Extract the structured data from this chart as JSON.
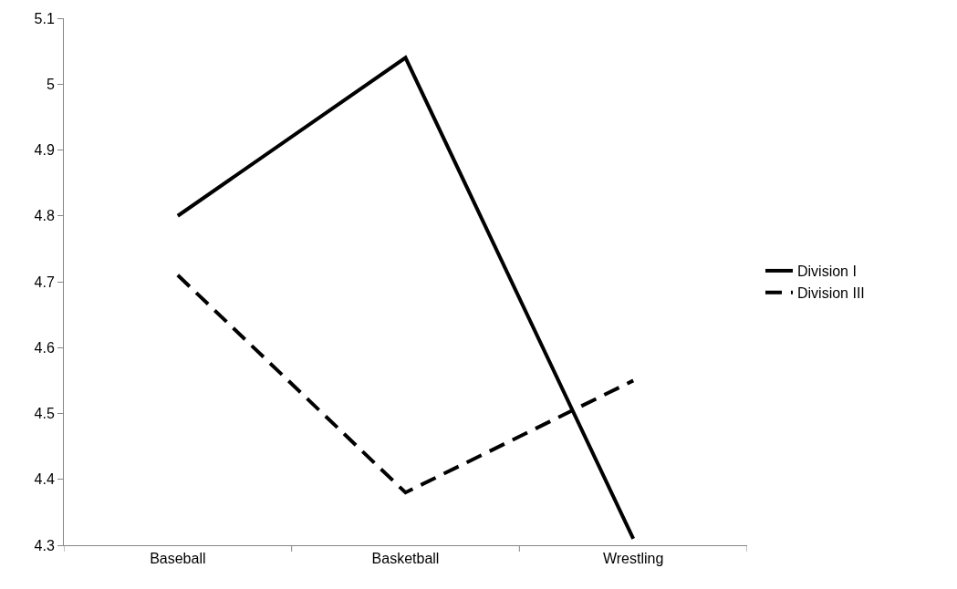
{
  "chart_data": {
    "type": "line",
    "categories": [
      "Baseball",
      "Basketball",
      "Wrestling"
    ],
    "series": [
      {
        "name": "Division I",
        "color": "#000000",
        "values": [
          4.8,
          5.04,
          4.31
        ],
        "line_style": "solid"
      },
      {
        "name": "Division III",
        "color": "#000000",
        "values": [
          4.71,
          4.38,
          4.55
        ],
        "line_style": "dashed"
      }
    ],
    "ylim": [
      4.3,
      5.1
    ],
    "yticks": [
      4.3,
      4.4,
      4.5,
      4.6,
      4.7,
      4.8,
      4.9,
      {
        "value": 5.0,
        "label": "5"
      },
      5.1
    ],
    "grid": false,
    "legend": "right",
    "marker": "none"
  }
}
